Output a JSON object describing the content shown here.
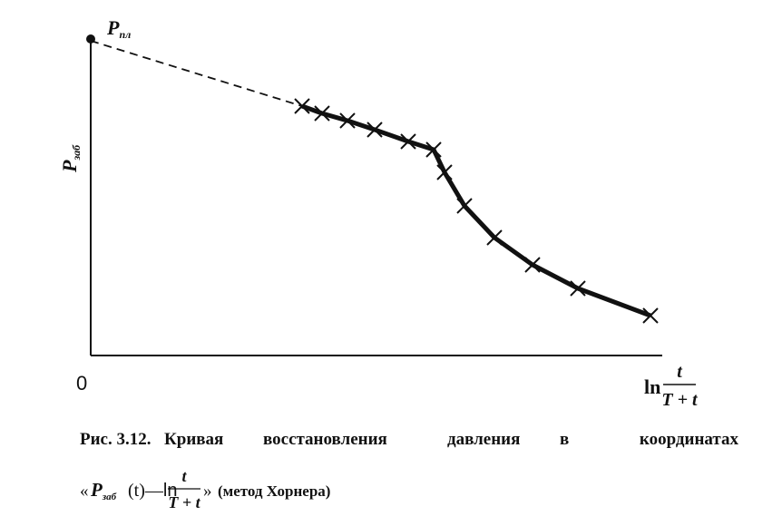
{
  "figure": {
    "point_label": {
      "symbol": "P",
      "subscript": "пл"
    },
    "y_axis_label": {
      "symbol": "P",
      "subscript": "заб"
    },
    "origin": "0",
    "x_axis_label": {
      "function": "ln",
      "numerator": "t",
      "denominator": "T + t"
    },
    "caption": {
      "number": "Рис. 3.12.",
      "words": [
        "Кривая",
        "восстановления",
        "давления",
        "в",
        "координатах"
      ],
      "formula": {
        "open": "«",
        "symbol": "P",
        "subscript": "заб",
        "argument": "(t)",
        "dash": "—",
        "function": "ln",
        "numerator": "t",
        "denominator": "T + t",
        "close": "»"
      },
      "note": "(метод Хорнера)"
    }
  }
}
